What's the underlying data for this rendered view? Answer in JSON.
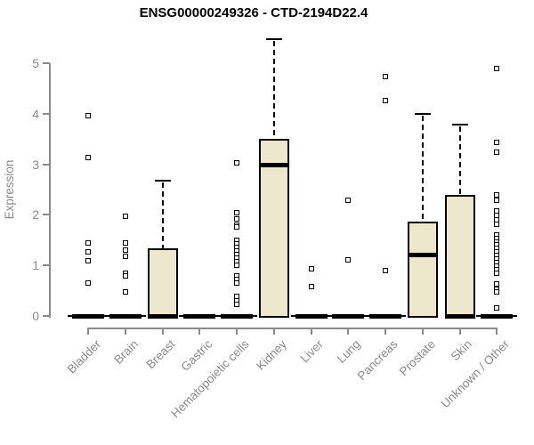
{
  "chart_data": {
    "type": "boxplot",
    "title": "ENSG00000249326 - CTD-2194D22.4",
    "ylabel": "Expression",
    "xlabel": "",
    "ylim": [
      0,
      5.6
    ],
    "yticks": [
      0,
      1,
      2,
      3,
      4,
      5
    ],
    "grid": false,
    "legend": "none",
    "box_fill_color": "#EDE8CD",
    "box_border_color": "#000000",
    "axis_color": "#8A8A8A",
    "label_color": "#8A8A8A",
    "categories": [
      "Bladder",
      "Brain",
      "Breast",
      "Gastric",
      "Hematopoietic cells",
      "Kidney",
      "Liver",
      "Lung",
      "Pancreas",
      "Prostate",
      "Skin",
      "Unknown / Other"
    ],
    "series": [
      {
        "name": "Bladder",
        "q1": 0,
        "median": 0,
        "q3": 0,
        "whisker_low": 0,
        "whisker_high": 0,
        "outliers": [
          3.97,
          3.13,
          1.44,
          1.26,
          1.1,
          0.65
        ]
      },
      {
        "name": "Brain",
        "q1": 0,
        "median": 0,
        "q3": 0,
        "whisker_low": 0,
        "whisker_high": 0,
        "outliers": [
          1.97,
          1.45,
          1.31,
          1.18,
          0.84,
          0.8,
          0.47
        ]
      },
      {
        "name": "Breast",
        "q1": 0,
        "median": 0,
        "q3": 1.33,
        "whisker_low": 0,
        "whisker_high": 2.68,
        "outliers": []
      },
      {
        "name": "Gastric",
        "q1": 0,
        "median": 0,
        "q3": 0,
        "whisker_low": 0,
        "whisker_high": 0,
        "outliers": []
      },
      {
        "name": "Hematopoietic cells",
        "q1": 0,
        "median": 0,
        "q3": 0,
        "whisker_low": 0,
        "whisker_high": 0,
        "outliers": [
          3.03,
          2.05,
          1.92,
          1.8,
          1.76,
          1.49,
          1.42,
          1.35,
          1.28,
          1.21,
          1.14,
          1.07,
          1.0,
          0.79,
          0.72,
          0.65,
          0.38,
          0.3,
          0.23
        ]
      },
      {
        "name": "Kidney",
        "q1": 0,
        "median": 2.99,
        "q3": 3.51,
        "whisker_low": 0,
        "whisker_high": 5.47,
        "outliers": []
      },
      {
        "name": "Liver",
        "q1": 0,
        "median": 0,
        "q3": 0,
        "whisker_low": 0,
        "whisker_high": 0,
        "outliers": [
          0.93,
          0.58
        ]
      },
      {
        "name": "Lung",
        "q1": 0,
        "median": 0,
        "q3": 0,
        "whisker_low": 0,
        "whisker_high": 0,
        "outliers": [
          2.28,
          1.11
        ]
      },
      {
        "name": "Pancreas",
        "q1": 0,
        "median": 0,
        "q3": 0,
        "whisker_low": 0,
        "whisker_high": 0,
        "outliers": [
          4.73,
          4.26,
          0.9
        ]
      },
      {
        "name": "Prostate",
        "q1": 0,
        "median": 1.22,
        "q3": 1.86,
        "whisker_low": 0,
        "whisker_high": 4.0,
        "outliers": []
      },
      {
        "name": "Skin",
        "q1": 0,
        "median": 0,
        "q3": 2.4,
        "whisker_low": 0,
        "whisker_high": 3.79,
        "outliers": []
      },
      {
        "name": "Unknown / Other",
        "q1": 0,
        "median": 0,
        "q3": 0,
        "whisker_low": 0,
        "whisker_high": 0,
        "outliers": [
          4.89,
          3.43,
          3.24,
          2.4,
          2.28,
          2.08,
          1.99,
          1.9,
          1.82,
          1.61,
          1.54,
          1.47,
          1.4,
          1.33,
          1.26,
          1.19,
          1.12,
          1.05,
          0.98,
          0.91,
          0.84,
          0.64,
          0.52,
          0.48,
          0.15
        ]
      }
    ]
  }
}
